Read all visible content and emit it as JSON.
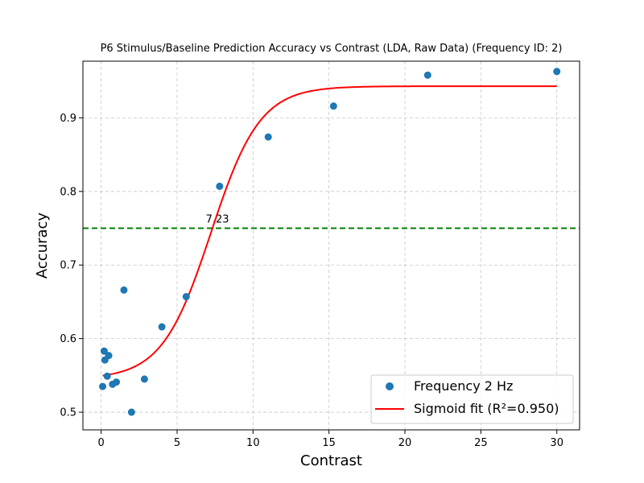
{
  "chart_data": {
    "type": "scatter",
    "title": "P6 Stimulus/Baseline Prediction Accuracy vs Contrast (LDA, Raw Data) (Frequency ID: 2)",
    "xlabel": "Contrast",
    "ylabel": "Accuracy",
    "xlim": [
      -1.2,
      31.5
    ],
    "ylim": [
      0.476,
      0.977
    ],
    "xticks": [
      0,
      5,
      10,
      15,
      20,
      25,
      30
    ],
    "yticks": [
      0.5,
      0.6,
      0.7,
      0.8,
      0.9
    ],
    "xtick_labels": [
      "0",
      "5",
      "10",
      "15",
      "20",
      "25",
      "30"
    ],
    "ytick_labels": [
      "0.5",
      "0.6",
      "0.7",
      "0.8",
      "0.9"
    ],
    "grid": true,
    "legend_position": "lower-right",
    "series": [
      {
        "name": "Frequency 2 Hz",
        "kind": "scatter",
        "color": "#1f77b4",
        "x": [
          0.1,
          0.2,
          0.25,
          0.4,
          0.5,
          0.75,
          1.0,
          1.5,
          2.0,
          2.85,
          4.0,
          5.6,
          7.8,
          11.0,
          15.3,
          21.5,
          30.0
        ],
        "y": [
          0.535,
          0.583,
          0.571,
          0.549,
          0.577,
          0.538,
          0.541,
          0.666,
          0.5,
          0.545,
          0.616,
          0.657,
          0.807,
          0.874,
          0.916,
          0.958,
          0.963
        ]
      },
      {
        "name": "Sigmoid fit ($R^2$=0.950)",
        "name_display": "Sigmoid fit (R²=0.950)",
        "kind": "line",
        "color": "#ff0000",
        "model": "sigmoid",
        "params": {
          "bottom": 0.545,
          "top": 0.943,
          "x0": 7.23,
          "k": 0.62
        },
        "x_range": [
          0.1,
          30.0
        ]
      }
    ],
    "threshold": {
      "y": 0.75,
      "color": "#008000",
      "style": "dashed",
      "label": "7.23",
      "label_x": 7.23
    }
  }
}
